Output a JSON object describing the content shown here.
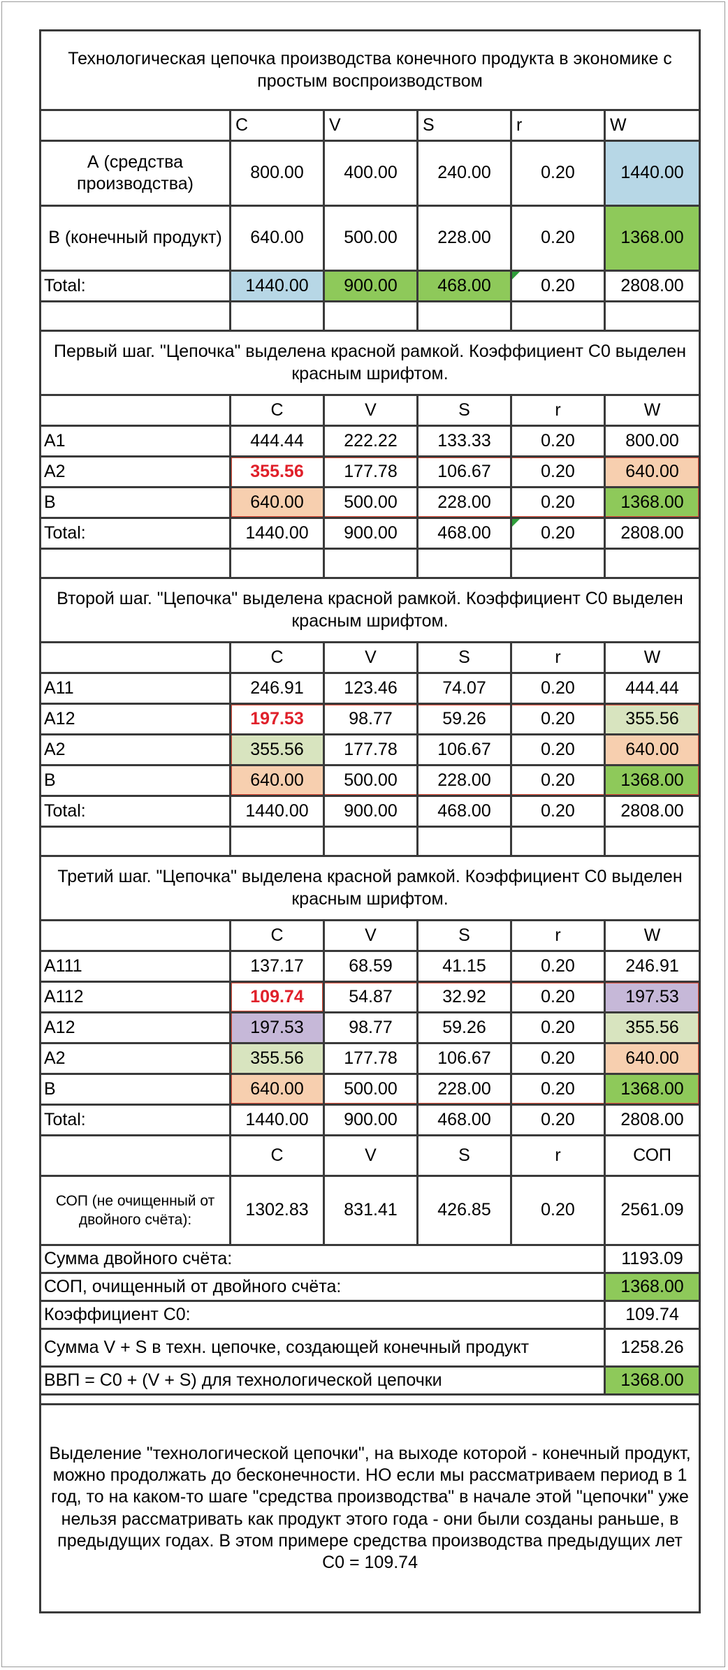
{
  "title": "Технологическая цепочка производства конечного продукта в экономике с простым воспроизводством",
  "cols": {
    "c": "C",
    "v": "V",
    "s": "S",
    "r": "r",
    "w": "W",
    "sop": "СОП"
  },
  "t0": {
    "rows": [
      {
        "label": "А (средства производства)",
        "c": "800.00",
        "v": "400.00",
        "s": "240.00",
        "r": "0.20",
        "w": "1440.00"
      },
      {
        "label": "В (конечный продукт)",
        "c": "640.00",
        "v": "500.00",
        "s": "228.00",
        "r": "0.20",
        "w": "1368.00"
      }
    ],
    "total": {
      "label": "Total:",
      "c": "1440.00",
      "v": "900.00",
      "s": "468.00",
      "r": "0.20",
      "w": "2808.00"
    }
  },
  "step1": {
    "title": "Первый шаг. \"Цепочка\" выделена красной рамкой. Коэффициент С0 выделен красным шрифтом.",
    "rows": [
      {
        "label": "A1",
        "c": "444.44",
        "v": "222.22",
        "s": "133.33",
        "r": "0.20",
        "w": "800.00"
      },
      {
        "label": "A2",
        "c": "355.56",
        "v": "177.78",
        "s": "106.67",
        "r": "0.20",
        "w": "640.00"
      },
      {
        "label": "B",
        "c": "640.00",
        "v": "500.00",
        "s": "228.00",
        "r": "0.20",
        "w": "1368.00"
      }
    ],
    "total": {
      "label": "Total:",
      "c": "1440.00",
      "v": "900.00",
      "s": "468.00",
      "r": "0.20",
      "w": "2808.00"
    }
  },
  "step2": {
    "title": "Второй шаг. \"Цепочка\" выделена красной рамкой. Коэффициент С0 выделен красным шрифтом.",
    "rows": [
      {
        "label": "A11",
        "c": "246.91",
        "v": "123.46",
        "s": "74.07",
        "r": "0.20",
        "w": "444.44"
      },
      {
        "label": "A12",
        "c": "197.53",
        "v": "98.77",
        "s": "59.26",
        "r": "0.20",
        "w": "355.56"
      },
      {
        "label": "A2",
        "c": "355.56",
        "v": "177.78",
        "s": "106.67",
        "r": "0.20",
        "w": "640.00"
      },
      {
        "label": "B",
        "c": "640.00",
        "v": "500.00",
        "s": "228.00",
        "r": "0.20",
        "w": "1368.00"
      }
    ],
    "total": {
      "label": "Total:",
      "c": "1440.00",
      "v": "900.00",
      "s": "468.00",
      "r": "0.20",
      "w": "2808.00"
    }
  },
  "step3": {
    "title": "Третий шаг. \"Цепочка\" выделена красной рамкой. Коэффициент С0 выделен красным шрифтом.",
    "rows": [
      {
        "label": "A111",
        "c": "137.17",
        "v": "68.59",
        "s": "41.15",
        "r": "0.20",
        "w": "246.91"
      },
      {
        "label": "A112",
        "c": "109.74",
        "v": "54.87",
        "s": "32.92",
        "r": "0.20",
        "w": "197.53"
      },
      {
        "label": "A12",
        "c": "197.53",
        "v": "98.77",
        "s": "59.26",
        "r": "0.20",
        "w": "355.56"
      },
      {
        "label": "A2",
        "c": "355.56",
        "v": "177.78",
        "s": "106.67",
        "r": "0.20",
        "w": "640.00"
      },
      {
        "label": "B",
        "c": "640.00",
        "v": "500.00",
        "s": "228.00",
        "r": "0.20",
        "w": "1368.00"
      }
    ],
    "total": {
      "label": "Total:",
      "c": "1440.00",
      "v": "900.00",
      "s": "468.00",
      "r": "0.20",
      "w": "2808.00"
    }
  },
  "summary": {
    "sop_row": {
      "label": "СОП (не очищенный от двойного счёта):",
      "c": "1302.83",
      "v": "831.41",
      "s": "426.85",
      "r": "0.20",
      "sop": "2561.09"
    },
    "double_count": {
      "label": "Сумма двойного счёта:",
      "value": "1193.09"
    },
    "sop_clean": {
      "label": "СОП, очищенный от двойного счёта:",
      "value": "1368.00"
    },
    "coef": {
      "label": "Коэффициент С0:",
      "value": "109.74"
    },
    "vs_sum": {
      "label": "Сумма V + S в техн. цепочке, создающей конечный продукт",
      "value": "1258.26"
    },
    "gdp": {
      "label": "ВВП = С0 + (V + S) для  технологической цепочки",
      "value": "1368.00"
    }
  },
  "note": "Выделение \"технологической цепочки\", на выходе которой - конечный продукт, можно продолжать до бесконечности. НО если мы рассматриваем период в 1 год, то на каком-то шаге \"средства производства\" в начале этой \"цепочки\" уже нельзя рассматривать как продукт этого года - они были созданы раньше, в предыдущих годах. В этом примере средства производства предыдущих лет С0 = 109.74",
  "colors": {
    "frame_red": "#e04a35",
    "coef_red": "#e0202a",
    "blue": "#b7d7e6",
    "green": "#8ec95a",
    "peach": "#f7cfaf",
    "light_green": "#d8e4bf",
    "lavender": "#c6b8d8"
  }
}
